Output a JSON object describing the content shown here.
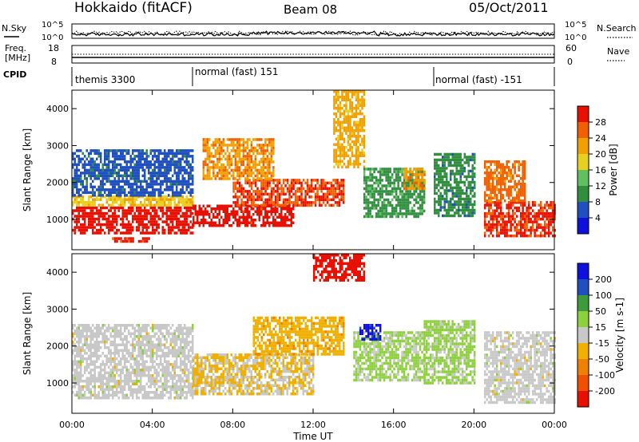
{
  "header": {
    "title": "Hokkaido (fitACF)",
    "beam": "Beam 08",
    "date": "05/Oct/2011"
  },
  "noise_panel": {
    "left_label": "N.Sky",
    "right_label": "N.Search",
    "left_ticks": [
      "10^5",
      "10^0"
    ],
    "right_ticks": [
      "10^5",
      "10^0"
    ]
  },
  "freq_panel": {
    "left_label_1": "Freq.",
    "left_label_2": "[MHz]",
    "left_ticks": [
      "18",
      "8"
    ],
    "right_label": "Nave",
    "right_ticks": [
      "60",
      "0"
    ]
  },
  "cpid_panel": {
    "label": "CPID",
    "segments": [
      {
        "start_hour": 0,
        "end_hour": 6,
        "name": "themis 3300"
      },
      {
        "start_hour": 6,
        "end_hour": 18,
        "name": "normal (fast) 151"
      },
      {
        "start_hour": 18,
        "end_hour": 24,
        "name": "normal (fast) -151"
      }
    ]
  },
  "power_panel": {
    "ylabel": "Slant Range [km]",
    "yticks": [
      "1000",
      "2000",
      "3000",
      "4000"
    ],
    "colorbar_label": "Power [dB]",
    "colorbar_ticks": [
      "4",
      "8",
      "12",
      "16",
      "20",
      "24",
      "28"
    ]
  },
  "velocity_panel": {
    "ylabel": "Slant Range [km]",
    "yticks": [
      "1000",
      "2000",
      "3000",
      "4000"
    ],
    "colorbar_label": "Velocity [m s-1]",
    "colorbar_ticks": [
      "200",
      "100",
      "50",
      "15",
      "-15",
      "-50",
      "-100",
      "-200"
    ]
  },
  "xaxis": {
    "label": "Time UT",
    "ticks": [
      "00:00",
      "04:00",
      "08:00",
      "12:00",
      "16:00",
      "20:00",
      "00:00"
    ]
  },
  "chart_data": [
    {
      "type": "heatmap",
      "title": "Power",
      "x_range_hours": [
        0,
        24
      ],
      "y_range_km": [
        180,
        4500
      ],
      "colorbar_range": [
        0,
        30
      ],
      "colors": [
        "#1010dd",
        "#2050c0",
        "#2f8f3f",
        "#60c060",
        "#e8d020",
        "#f0a000",
        "#f06000",
        "#e81000"
      ],
      "regions": [
        {
          "t0": 0.0,
          "t1": 6.0,
          "r0": 650,
          "r1": 1350,
          "power": 29
        },
        {
          "t0": 0.0,
          "t1": 6.0,
          "r0": 1350,
          "r1": 1650,
          "power": 18
        },
        {
          "t0": 0.0,
          "t1": 6.0,
          "r0": 1650,
          "r1": 2900,
          "power": 6
        },
        {
          "t0": 2.0,
          "t1": 3.8,
          "r0": 380,
          "r1": 520,
          "power": 27
        },
        {
          "t0": 6.0,
          "t1": 11.0,
          "r0": 800,
          "r1": 1400,
          "power": 28
        },
        {
          "t0": 8.0,
          "t1": 13.5,
          "r0": 1400,
          "r1": 2100,
          "power": 26
        },
        {
          "t0": 6.5,
          "t1": 10.0,
          "r0": 2100,
          "r1": 3200,
          "power": 22
        },
        {
          "t0": 13.0,
          "t1": 14.5,
          "r0": 2400,
          "r1": 4500,
          "power": 20
        },
        {
          "t0": 14.5,
          "t1": 17.5,
          "r0": 1100,
          "r1": 2400,
          "power": 10
        },
        {
          "t0": 16.5,
          "t1": 17.5,
          "r0": 1800,
          "r1": 2400,
          "power": 22
        },
        {
          "t0": 18.0,
          "t1": 20.0,
          "r0": 1100,
          "r1": 2800,
          "power": 9
        },
        {
          "t0": 20.5,
          "t1": 24.0,
          "r0": 550,
          "r1": 1500,
          "power": 27
        },
        {
          "t0": 20.5,
          "t1": 22.5,
          "r0": 1500,
          "r1": 2600,
          "power": 24
        }
      ]
    },
    {
      "type": "heatmap",
      "title": "Velocity",
      "x_range_hours": [
        0,
        24
      ],
      "y_range_km": [
        180,
        4500
      ],
      "colorbar_range": [
        -250,
        250
      ],
      "colors": [
        "#e81000",
        "#f05000",
        "#f08000",
        "#f0b000",
        "#c8c8c8",
        "#8cd03c",
        "#3c9c3c",
        "#2050c0",
        "#1010dd"
      ],
      "regions": [
        {
          "t0": 0.0,
          "t1": 6.0,
          "r0": 600,
          "r1": 2600,
          "velocity": 0
        },
        {
          "t0": 6.0,
          "t1": 12.0,
          "r0": 700,
          "r1": 1800,
          "velocity": -30
        },
        {
          "t0": 9.0,
          "t1": 13.5,
          "r0": 1800,
          "r1": 2800,
          "velocity": -60
        },
        {
          "t0": 12.0,
          "t1": 14.5,
          "r0": 3800,
          "r1": 4500,
          "velocity": -230
        },
        {
          "t0": 14.0,
          "t1": 17.5,
          "r0": 1100,
          "r1": 2400,
          "velocity": 40
        },
        {
          "t0": 14.3,
          "t1": 15.3,
          "r0": 2200,
          "r1": 2600,
          "velocity": 210
        },
        {
          "t0": 17.5,
          "t1": 20.0,
          "r0": 1000,
          "r1": 2700,
          "velocity": 45
        },
        {
          "t0": 20.5,
          "t1": 24.0,
          "r0": 500,
          "r1": 2400,
          "velocity": 0
        }
      ]
    }
  ]
}
